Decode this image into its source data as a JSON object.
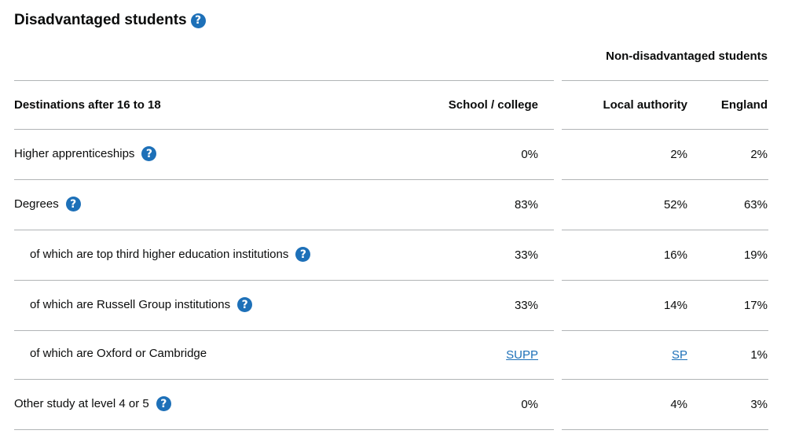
{
  "section": {
    "title": "Disadvantaged students",
    "group_header": "Non-disadvantaged students"
  },
  "table": {
    "headers": {
      "destination": "Destinations after 16 to 18",
      "school": "School / college",
      "la": "Local authority",
      "england": "England"
    },
    "rows": [
      {
        "label": "Higher apprenticeships",
        "help": true,
        "indent": false,
        "school": "0%",
        "la": "2%",
        "england": "2%"
      },
      {
        "label": "Degrees",
        "help": true,
        "indent": false,
        "school": "83%",
        "la": "52%",
        "england": "63%"
      },
      {
        "label": "of which are top third higher education institutions",
        "help": true,
        "indent": true,
        "school": "33%",
        "la": "16%",
        "england": "19%"
      },
      {
        "label": "of which are Russell Group institutions",
        "help": true,
        "indent": true,
        "school": "33%",
        "la": "14%",
        "england": "17%"
      },
      {
        "label": "of which are Oxford or Cambridge",
        "help": false,
        "indent": true,
        "school": "SUPP",
        "la": "SP",
        "england": "1%"
      },
      {
        "label": "Other study at level 4 or 5",
        "help": true,
        "indent": false,
        "school": "0%",
        "la": "4%",
        "england": "3%"
      }
    ]
  },
  "help_glyph": "?",
  "icons": {
    "help": "question-circle-icon"
  },
  "colors": {
    "link": "#1d70b8",
    "help_bg": "#1d70b8",
    "border": "#b1b4b6",
    "text": "#0b0c0c"
  }
}
